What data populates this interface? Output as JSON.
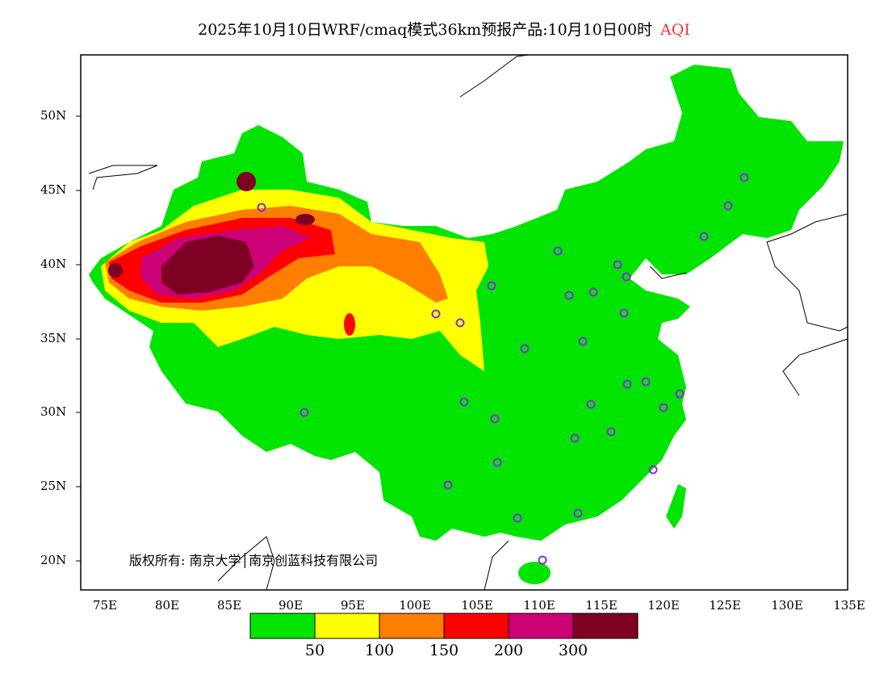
{
  "title": {
    "text": "2025年10月10日WRF/cmaq模式36km预报产品:10月10日00时",
    "variable": "AQI",
    "variable_color": "#ff3333"
  },
  "axes": {
    "lat_labels": [
      "50N",
      "45N",
      "40N",
      "35N",
      "30N",
      "25N",
      "20N"
    ],
    "lon_labels": [
      "75E",
      "80E",
      "85E",
      "90E",
      "95E",
      "100E",
      "105E",
      "110E",
      "115E",
      "120E",
      "125E",
      "130E",
      "135E"
    ]
  },
  "copyright": "版权所有: 南京大学│南京创蓝科技有限公司",
  "legend": {
    "colors": [
      "#00e400",
      "#ffff00",
      "#ff7e00",
      "#ff0000",
      "#cc0077",
      "#7e0023"
    ],
    "levels": [
      "50",
      "100",
      "150",
      "200",
      "300"
    ]
  },
  "city_marker_color": "#8a2be2"
}
